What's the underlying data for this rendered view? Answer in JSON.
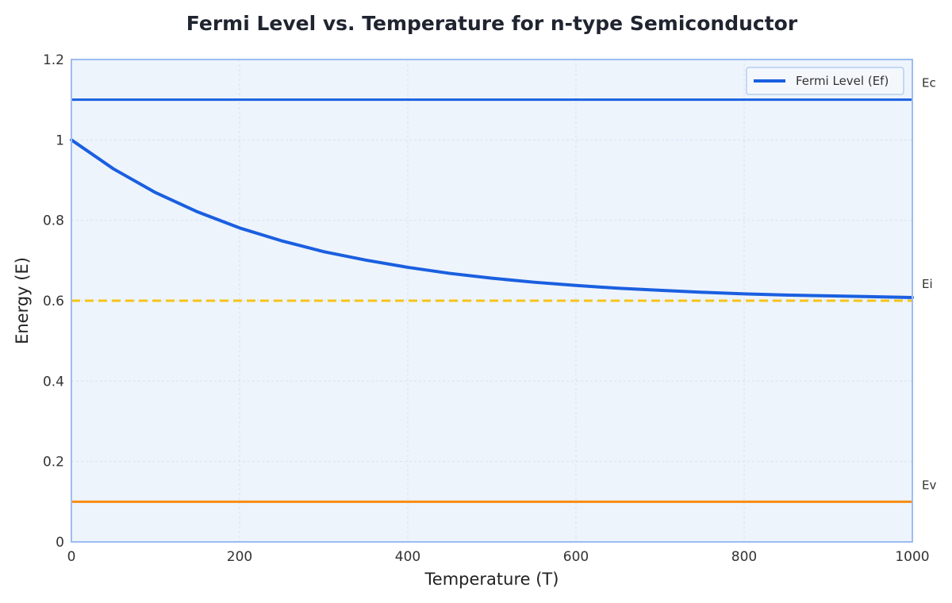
{
  "chart_data": {
    "type": "line",
    "title": "Fermi Level vs. Temperature for n-type Semiconductor",
    "xlabel": "Temperature (T)",
    "ylabel": "Energy (E)",
    "xlim": [
      0,
      1000
    ],
    "ylim": [
      0,
      1.2
    ],
    "x_ticks": [
      0,
      200,
      400,
      600,
      800,
      1000
    ],
    "x_tick_labels": [
      "0",
      "200",
      "400",
      "600",
      "800",
      "1000"
    ],
    "y_ticks": [
      0,
      0.2,
      0.4,
      0.6,
      0.8,
      1,
      1.2
    ],
    "y_tick_labels": [
      "0",
      "0.2",
      "0.4",
      "0.6",
      "0.8",
      "1",
      "1.2"
    ],
    "grid": true,
    "legend": {
      "position": "top-right",
      "entries": [
        "Fermi Level (Ef)"
      ]
    },
    "series": [
      {
        "name": "Fermi Level (Ef)",
        "color": "#1a5fe0",
        "x": [
          0,
          50,
          100,
          150,
          200,
          250,
          300,
          350,
          400,
          450,
          500,
          550,
          600,
          650,
          700,
          750,
          800,
          850,
          900,
          950,
          1000
        ],
        "y": [
          1.0,
          0.928,
          0.869,
          0.821,
          0.781,
          0.749,
          0.722,
          0.701,
          0.683,
          0.668,
          0.656,
          0.646,
          0.638,
          0.631,
          0.626,
          0.621,
          0.617,
          0.614,
          0.612,
          0.61,
          0.608
        ]
      }
    ],
    "reference_lines": [
      {
        "label": "Ec",
        "y": 1.1,
        "color": "#1a5fe0",
        "style": "solid"
      },
      {
        "label": "Ei",
        "y": 0.6,
        "color": "#f5c518",
        "style": "dashed"
      },
      {
        "label": "Ev",
        "y": 0.1,
        "color": "#f78c0f",
        "style": "solid"
      }
    ],
    "colors": {
      "plot_background": "#eef4fc",
      "plot_border": "#9dbcf0",
      "grid": "#d6e2f2"
    }
  }
}
